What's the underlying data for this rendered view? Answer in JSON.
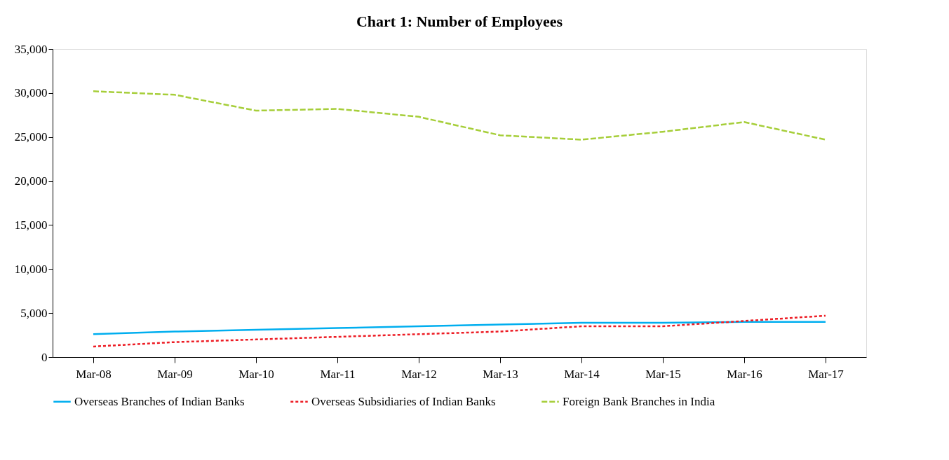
{
  "chart_data": {
    "type": "line",
    "title": "Chart 1: Number of Employees",
    "categories": [
      "Mar-08",
      "Mar-09",
      "Mar-10",
      "Mar-11",
      "Mar-12",
      "Mar-13",
      "Mar-14",
      "Mar-15",
      "Mar-16",
      "Mar-17"
    ],
    "series": [
      {
        "name": "Overseas Branches of Indian Banks",
        "color": "#00aeef",
        "line_style": "solid",
        "values": [
          2600,
          2900,
          3100,
          3300,
          3500,
          3700,
          3900,
          3900,
          4000,
          4000
        ]
      },
      {
        "name": "Overseas Subsidiaries of Indian Banks",
        "color": "#ed1c24",
        "line_style": "dotted",
        "values": [
          1200,
          1700,
          2000,
          2300,
          2600,
          2900,
          3500,
          3500,
          4100,
          4700
        ]
      },
      {
        "name": "Foreign Bank Branches in India",
        "color": "#a6ce39",
        "line_style": "dashed",
        "values": [
          30200,
          29800,
          28000,
          28200,
          27300,
          25200,
          24700,
          25600,
          26700,
          24700
        ]
      }
    ],
    "ylim": [
      0,
      35000
    ],
    "yticks": [
      0,
      {
        "value": 5000,
        "label": "5,000"
      },
      {
        "value": 10000,
        "label": "10,000"
      },
      {
        "value": 15000,
        "label": "15,000"
      },
      {
        "value": 20000,
        "label": "20,000"
      },
      {
        "value": 25000,
        "label": "25,000"
      },
      {
        "value": 30000,
        "label": "30,000"
      },
      {
        "value": 35000,
        "label": "35,000"
      }
    ],
    "grid": false,
    "legend": "bottom",
    "marker": "none"
  }
}
